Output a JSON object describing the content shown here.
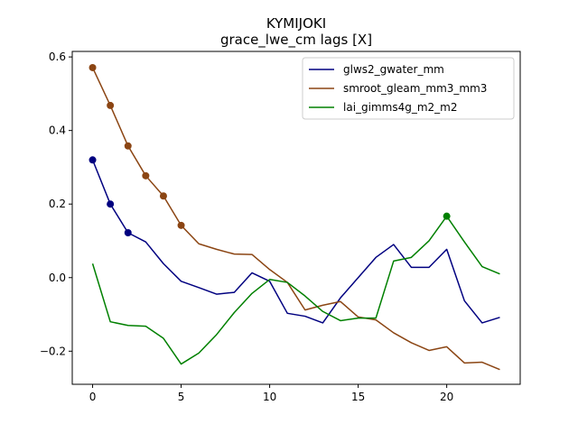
{
  "chart_data": {
    "type": "line",
    "title": "KYMIJOKI",
    "subtitle": "grace_lwe_cm lags [X]",
    "xlabel": "",
    "ylabel": "",
    "xlim": [
      -1.15,
      24.15
    ],
    "ylim": [
      -0.29,
      0.615
    ],
    "xticks": [
      0,
      5,
      10,
      15,
      20
    ],
    "yticks": [
      -0.2,
      0.0,
      0.2,
      0.4,
      0.6
    ],
    "ytick_labels": [
      "−0.2",
      "0.0",
      "0.2",
      "0.4",
      "0.6"
    ],
    "legend_position": "top-right",
    "grid": false,
    "x": [
      0,
      1,
      2,
      3,
      4,
      5,
      6,
      7,
      8,
      9,
      10,
      11,
      12,
      13,
      14,
      15,
      16,
      17,
      18,
      19,
      20,
      21,
      22,
      23
    ],
    "series": [
      {
        "name": "glws2_gwater_mm",
        "color": "#000080",
        "values": [
          0.32,
          0.2,
          0.122,
          0.097,
          0.038,
          -0.01,
          -0.027,
          -0.045,
          -0.04,
          0.013,
          -0.01,
          -0.097,
          -0.105,
          -0.123,
          -0.055,
          0.0,
          0.055,
          0.09,
          0.028,
          0.028,
          0.077,
          -0.063,
          -0.123,
          -0.108
        ],
        "markers_x": [
          0,
          1,
          2
        ]
      },
      {
        "name": "smroot_gleam_mm3_mm3",
        "color": "#8B4513",
        "values": [
          0.571,
          0.468,
          0.358,
          0.277,
          0.222,
          0.142,
          0.092,
          0.077,
          0.064,
          0.063,
          0.022,
          -0.013,
          -0.088,
          -0.075,
          -0.065,
          -0.107,
          -0.115,
          -0.15,
          -0.177,
          -0.198,
          -0.188,
          -0.232,
          -0.23,
          -0.25
        ],
        "markers_x": [
          0,
          1,
          2,
          3,
          4,
          5
        ]
      },
      {
        "name": "lai_gimms4g_m2_m2",
        "color": "#008000",
        "values": [
          0.038,
          -0.12,
          -0.13,
          -0.132,
          -0.165,
          -0.235,
          -0.205,
          -0.155,
          -0.095,
          -0.043,
          -0.005,
          -0.013,
          -0.05,
          -0.092,
          -0.117,
          -0.11,
          -0.11,
          0.045,
          0.055,
          0.1,
          0.167,
          0.097,
          0.03,
          0.01
        ],
        "markers_x": [
          20
        ]
      }
    ]
  }
}
